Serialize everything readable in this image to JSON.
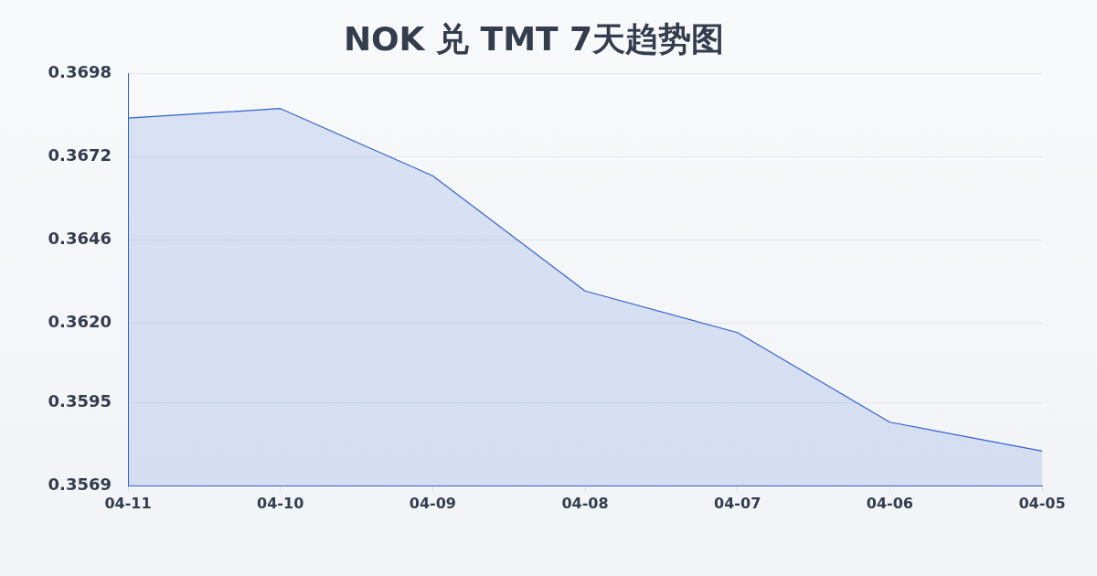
{
  "chart_data": {
    "type": "area",
    "title": "NOK 兑 TMT 7天趋势图",
    "categories": [
      "04-11",
      "04-10",
      "04-09",
      "04-08",
      "04-07",
      "04-06",
      "04-05"
    ],
    "values": [
      0.3684,
      0.3687,
      0.3666,
      0.363,
      0.3617,
      0.3589,
      0.358
    ],
    "color": "#3262cf",
    "ylim": [
      0.3569,
      0.3698
    ],
    "yticks": [
      0.3569,
      0.3595,
      {
        "value": 0.362,
        "label": "0.3620"
      },
      0.3646,
      0.3672,
      0.3698
    ],
    "grid": "y"
  }
}
